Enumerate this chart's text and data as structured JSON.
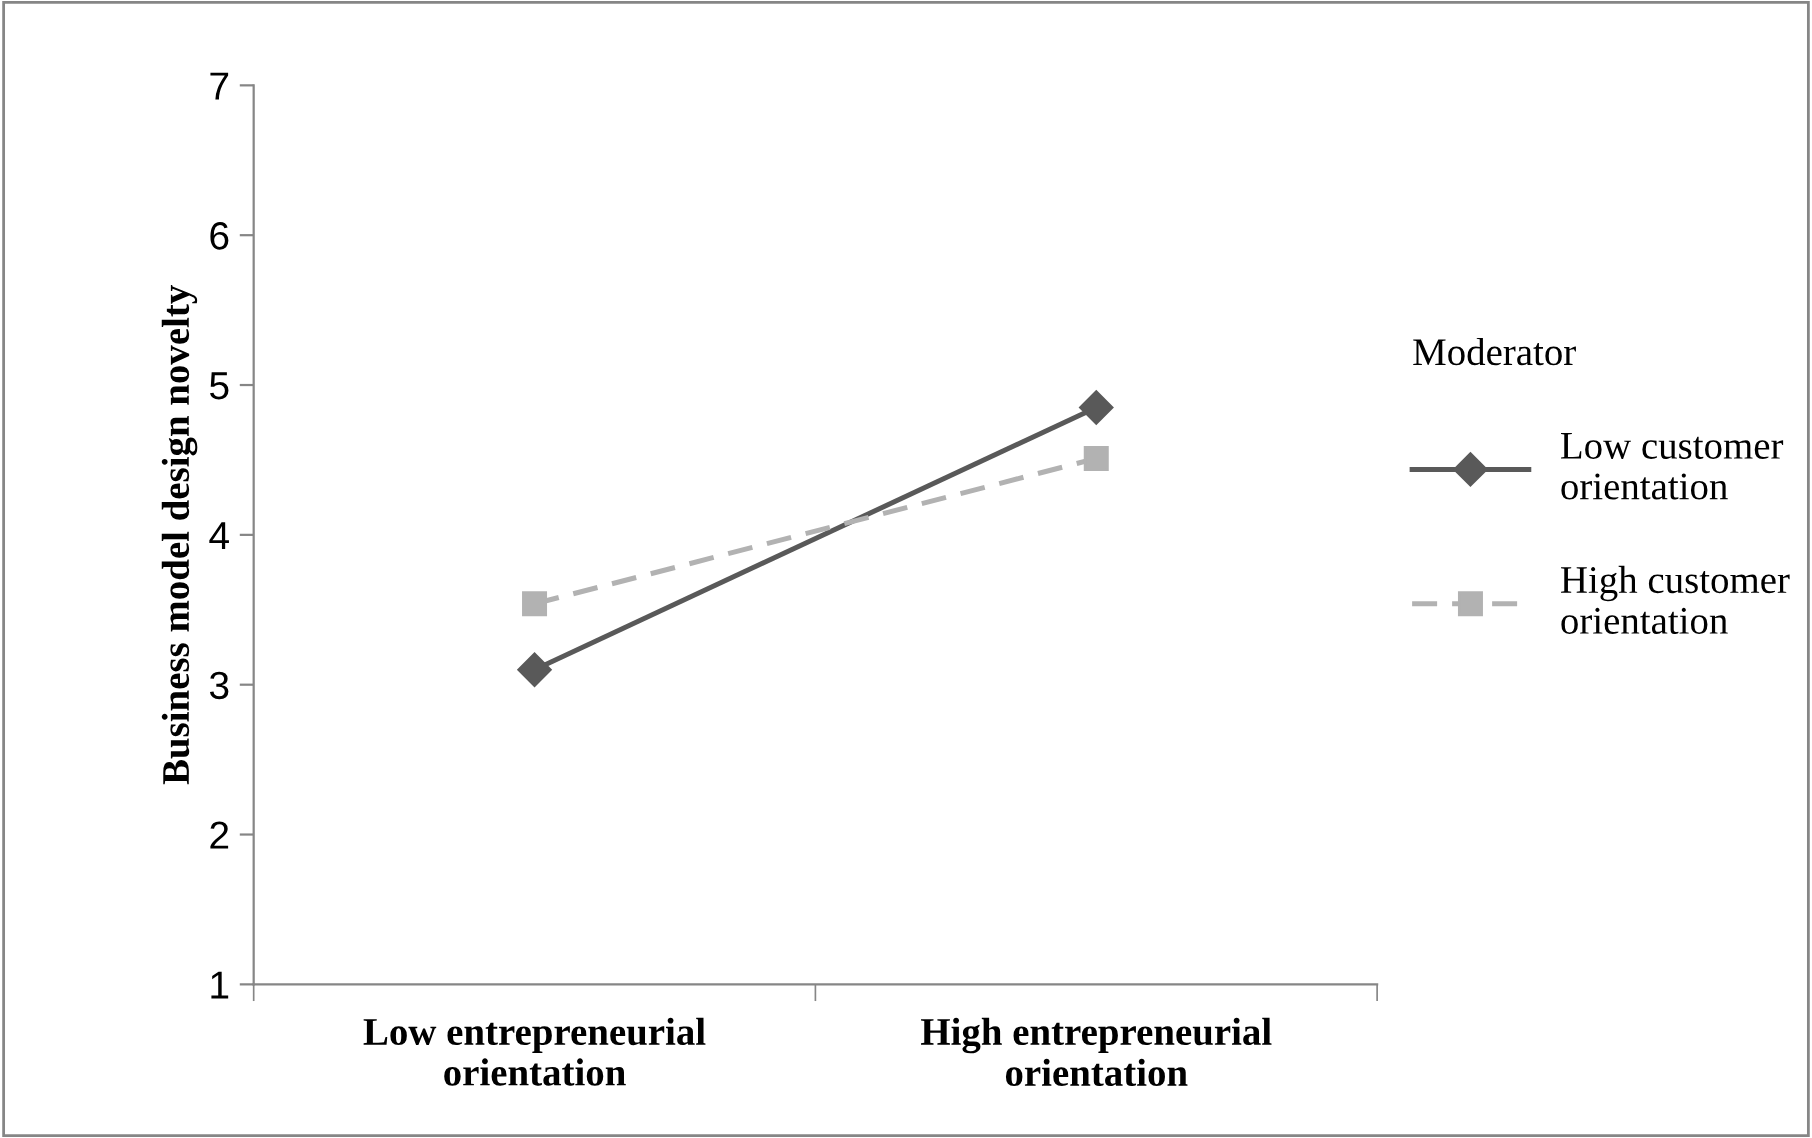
{
  "chart_data": {
    "type": "line",
    "ylabel": "Business model design novelty",
    "categories": [
      "Low entrepreneurial\norientation",
      "High entrepreneurial\norientation"
    ],
    "series": [
      {
        "name": "Low customer\norientation",
        "color": "#595959",
        "values": [
          3.1,
          4.85
        ],
        "marker": "diamond",
        "line_style": "solid"
      },
      {
        "name": "High customer\norientation",
        "color": "#b2b2b2",
        "values": [
          3.54,
          4.51
        ],
        "marker": "square",
        "line_style": "dashed"
      }
    ],
    "ylim": [
      1,
      7
    ],
    "yticks": [
      1,
      2,
      3,
      4,
      5,
      6,
      7
    ],
    "legend": "right",
    "legend_title": "Moderator",
    "grid": false
  }
}
